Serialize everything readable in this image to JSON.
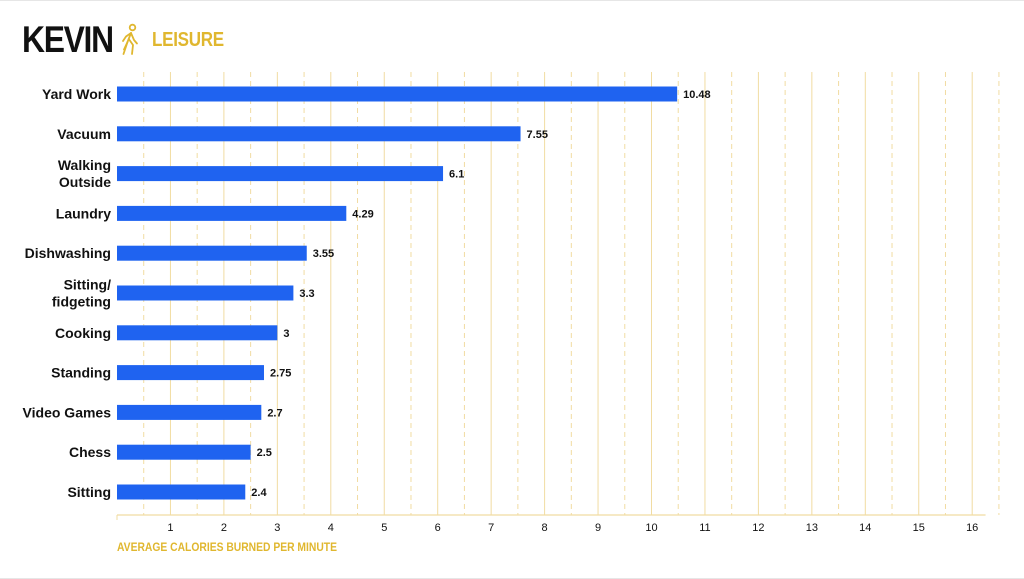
{
  "header": {
    "name": "KEVIN",
    "category": "LEISURE",
    "icon": "walking-person-icon"
  },
  "colors": {
    "bar": "#1f63f0",
    "accent": "#e0b72f",
    "grid": "#f1dca2",
    "text": "#111111"
  },
  "chart_data": {
    "type": "bar",
    "orientation": "horizontal",
    "categories": [
      [
        "Yard Work"
      ],
      [
        "Vacuum"
      ],
      [
        "Walking",
        "Outside"
      ],
      [
        "Laundry"
      ],
      [
        "Dishwashing"
      ],
      [
        "Sitting/",
        "fidgeting"
      ],
      [
        "Cooking"
      ],
      [
        "Standing"
      ],
      [
        "Video Games"
      ],
      [
        "Chess"
      ],
      [
        "Sitting"
      ]
    ],
    "values": [
      10.48,
      7.55,
      6.1,
      4.29,
      3.55,
      3.3,
      3,
      2.75,
      2.7,
      2.5,
      2.4
    ],
    "value_labels": [
      "10.48",
      "7.55",
      "6.1",
      "4.29",
      "3.55",
      "3.3",
      "3",
      "2.75",
      "2.7",
      "2.5",
      "2.4"
    ],
    "xticks": [
      "1",
      "2",
      "3",
      "4",
      "5",
      "6",
      "7",
      "8",
      "9",
      "10",
      "11",
      "12",
      "13",
      "14",
      "15",
      "16"
    ],
    "xlim": [
      0,
      16.5
    ],
    "xlabel": "AVERAGE CALORIES BURNED PER MINUTE",
    "grid": "vertical dashed at half units, solid at whole units"
  }
}
